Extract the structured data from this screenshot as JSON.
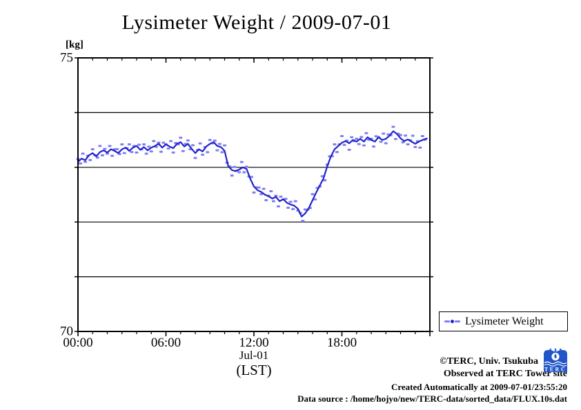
{
  "chart": {
    "title": "Lysimeter Weight / 2009-07-01",
    "y_unit": "[kg]",
    "x_date_label": "Jul-01",
    "x_tz_label": "(LST)",
    "legend_label": "Lysimeter Weight"
  },
  "footer": {
    "credit": "©TERC, Univ. Tsukuba",
    "observed": "Observed at TERC Tower site",
    "created": "Created Automatically at 2009-07-01/23:55:20",
    "source": "Data source : /home/hojyo/new/TERC-data/sorted_data/FLUX.10s.dat",
    "logo_text": "TERC"
  },
  "colors": {
    "line": "#2121cd",
    "scatter": "#7e7ef2",
    "axis": "#000000",
    "logo_blue": "#2156c8",
    "background": "#ffffff"
  },
  "chart_data": {
    "type": "line",
    "title": "Lysimeter Weight / 2009-07-01",
    "ylabel": "[kg]",
    "xlabel": "Jul-01 (LST)",
    "ylim": [
      70,
      75
    ],
    "xlim_hours": [
      0,
      24
    ],
    "grid": "horizontal-only",
    "gridline_values": [
      71,
      72,
      73,
      74
    ],
    "yticks": [
      {
        "value": 75,
        "label": "75"
      },
      {
        "value": 70,
        "label": "70"
      }
    ],
    "xticks": [
      {
        "hour": 0,
        "label": "00:00"
      },
      {
        "hour": 6,
        "label": "06:00"
      },
      {
        "hour": 12,
        "label": "12:00"
      },
      {
        "hour": 18,
        "label": "18:00"
      }
    ],
    "minor_xtick_every_hours": 1,
    "legend_position": "below-right-outside",
    "series": [
      {
        "name": "Lysimeter Weight",
        "style": "solid-line",
        "points": [
          [
            0,
            73.1
          ],
          [
            0.25,
            73.16
          ],
          [
            0.5,
            73.13
          ],
          [
            0.75,
            73.22
          ],
          [
            1,
            73.26
          ],
          [
            1.25,
            73.2
          ],
          [
            1.5,
            73.28
          ],
          [
            1.75,
            73.31
          ],
          [
            2,
            73.27
          ],
          [
            2.25,
            73.33
          ],
          [
            2.5,
            73.3
          ],
          [
            2.75,
            73.26
          ],
          [
            3,
            73.33
          ],
          [
            3.25,
            73.36
          ],
          [
            3.5,
            73.3
          ],
          [
            3.75,
            73.36
          ],
          [
            4,
            73.39
          ],
          [
            4.25,
            73.32
          ],
          [
            4.5,
            73.37
          ],
          [
            4.75,
            73.31
          ],
          [
            5,
            73.36
          ],
          [
            5.25,
            73.39
          ],
          [
            5.5,
            73.43
          ],
          [
            5.75,
            73.36
          ],
          [
            6,
            73.42
          ],
          [
            6.25,
            73.38
          ],
          [
            6.5,
            73.35
          ],
          [
            6.75,
            73.43
          ],
          [
            7,
            73.46
          ],
          [
            7.25,
            73.38
          ],
          [
            7.5,
            73.43
          ],
          [
            7.75,
            73.34
          ],
          [
            8,
            73.26
          ],
          [
            8.25,
            73.33
          ],
          [
            8.5,
            73.29
          ],
          [
            8.75,
            73.38
          ],
          [
            9,
            73.43
          ],
          [
            9.25,
            73.46
          ],
          [
            9.5,
            73.39
          ],
          [
            9.75,
            73.37
          ],
          [
            10,
            73.3
          ],
          [
            10.25,
            73.02
          ],
          [
            10.5,
            72.95
          ],
          [
            10.75,
            72.93
          ],
          [
            11,
            72.96
          ],
          [
            11.25,
            73.0
          ],
          [
            11.5,
            72.97
          ],
          [
            11.75,
            72.79
          ],
          [
            12,
            72.65
          ],
          [
            12.25,
            72.58
          ],
          [
            12.5,
            72.55
          ],
          [
            12.75,
            72.5
          ],
          [
            13,
            72.47
          ],
          [
            13.25,
            72.43
          ],
          [
            13.5,
            72.46
          ],
          [
            13.75,
            72.38
          ],
          [
            14,
            72.42
          ],
          [
            14.25,
            72.35
          ],
          [
            14.5,
            72.32
          ],
          [
            14.75,
            72.3
          ],
          [
            15,
            72.24
          ],
          [
            15.25,
            72.1
          ],
          [
            15.5,
            72.16
          ],
          [
            15.75,
            72.26
          ],
          [
            16,
            72.4
          ],
          [
            16.25,
            72.54
          ],
          [
            16.5,
            72.67
          ],
          [
            16.75,
            72.8
          ],
          [
            17,
            73.02
          ],
          [
            17.25,
            73.2
          ],
          [
            17.5,
            73.33
          ],
          [
            17.75,
            73.39
          ],
          [
            18,
            73.45
          ],
          [
            18.25,
            73.48
          ],
          [
            18.5,
            73.44
          ],
          [
            18.75,
            73.5
          ],
          [
            19,
            73.47
          ],
          [
            19.25,
            73.52
          ],
          [
            19.5,
            73.47
          ],
          [
            19.75,
            73.55
          ],
          [
            20,
            73.5
          ],
          [
            20.25,
            73.47
          ],
          [
            20.5,
            73.55
          ],
          [
            20.75,
            73.5
          ],
          [
            21,
            73.52
          ],
          [
            21.25,
            73.58
          ],
          [
            21.5,
            73.66
          ],
          [
            21.75,
            73.61
          ],
          [
            22,
            73.53
          ],
          [
            22.25,
            73.48
          ],
          [
            22.5,
            73.51
          ],
          [
            22.75,
            73.47
          ],
          [
            23,
            73.43
          ],
          [
            23.25,
            73.47
          ],
          [
            23.5,
            73.5
          ],
          [
            23.83,
            73.53
          ]
        ]
      }
    ],
    "scatter": {
      "name": "raw 10-second samples (plotted as light squares)",
      "step_minutes": 10,
      "marker_size_px": [
        5,
        3
      ],
      "offsets_kg": [
        0.05,
        -0.07,
        0.1,
        -0.03,
        0.02,
        -0.1,
        0.07,
        0,
        -0.05,
        0.11,
        -0.08,
        0.04,
        -0.02,
        0.08,
        -0.11,
        0.03,
        0.06,
        -0.04,
        0.09,
        -0.09,
        0.01,
        0.12,
        -0.06,
        0.02,
        -0.12,
        0.07,
        -0.01,
        0.05,
        -0.08
      ]
    }
  }
}
